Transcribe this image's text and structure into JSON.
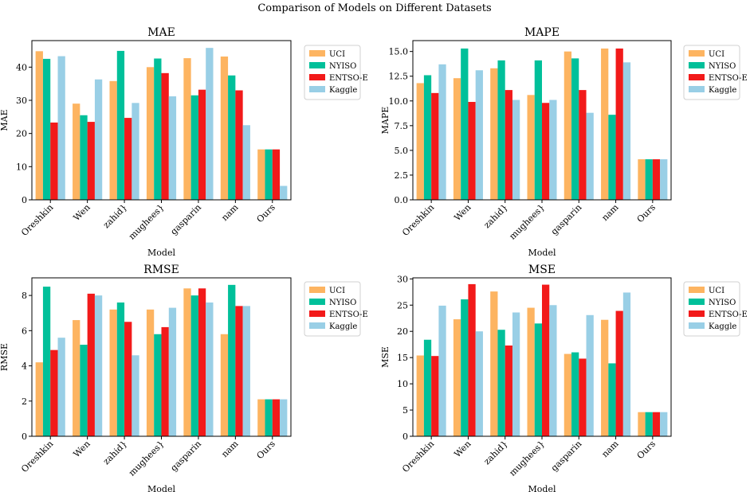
{
  "figure_title": "Comparison of Models on Different Datasets",
  "colors": {
    "UCI": "#FDB461",
    "NYISO": "#00C09A",
    "ENTSO-E": "#F21A1A",
    "Kaggle": "#99CFE6"
  },
  "chart_data": [
    {
      "type": "bar",
      "title": "MAE",
      "xlabel": "Model",
      "ylabel": "MAE",
      "categories": [
        "Oreshkin",
        "Wen",
        "zahid}",
        "mughees}",
        "gasparin",
        "nam",
        "Ours"
      ],
      "ylim": [
        0,
        48
      ],
      "yticks": [
        0,
        10,
        20,
        30,
        40
      ],
      "ytick_labels": [
        "0",
        "10",
        "20",
        "30",
        "40"
      ],
      "series": [
        {
          "name": "UCI",
          "values": [
            44.8,
            29.0,
            35.8,
            40.0,
            42.7,
            43.2,
            15.2
          ]
        },
        {
          "name": "NYISO",
          "values": [
            42.5,
            25.5,
            44.9,
            42.6,
            31.5,
            37.5,
            15.2
          ]
        },
        {
          "name": "ENTSO-E",
          "values": [
            23.3,
            23.5,
            24.7,
            38.2,
            33.2,
            33.0,
            15.2
          ]
        },
        {
          "name": "Kaggle",
          "values": [
            43.3,
            36.3,
            29.2,
            31.2,
            45.8,
            22.5,
            4.2
          ]
        }
      ],
      "legend": [
        "UCI",
        "NYISO",
        "ENTSO-E",
        "Kaggle"
      ]
    },
    {
      "type": "bar",
      "title": "MAPE",
      "xlabel": "Model",
      "ylabel": "MAPE",
      "categories": [
        "Oreshkin",
        "Wen",
        "zahid}",
        "mughees}",
        "gasparin",
        "nam",
        "Ours"
      ],
      "ylim": [
        0,
        16.1
      ],
      "yticks": [
        0,
        2.5,
        5,
        7.5,
        10,
        12.5,
        15
      ],
      "ytick_labels": [
        "0.0",
        "2.5",
        "5.0",
        "7.5",
        "10.0",
        "12.5",
        "15.0"
      ],
      "series": [
        {
          "name": "UCI",
          "values": [
            11.8,
            12.3,
            13.3,
            10.6,
            15.0,
            15.3,
            4.1
          ]
        },
        {
          "name": "NYISO",
          "values": [
            12.6,
            15.3,
            14.1,
            14.1,
            14.3,
            8.6,
            4.1
          ]
        },
        {
          "name": "ENTSO-E",
          "values": [
            10.8,
            9.9,
            11.1,
            9.8,
            11.1,
            15.3,
            4.1
          ]
        },
        {
          "name": "Kaggle",
          "values": [
            13.7,
            13.1,
            10.1,
            10.1,
            8.8,
            13.9,
            4.1
          ]
        }
      ],
      "legend": [
        "UCI",
        "NYISO",
        "ENTSO-E",
        "Kaggle"
      ]
    },
    {
      "type": "bar",
      "title": "RMSE",
      "xlabel": "Model",
      "ylabel": "RMSE",
      "categories": [
        "Oreshkin",
        "Wen",
        "zahid}",
        "mughees}",
        "gasparin",
        "nam",
        "Ours"
      ],
      "ylim": [
        0,
        9.0
      ],
      "yticks": [
        0,
        2,
        4,
        6,
        8
      ],
      "ytick_labels": [
        "0",
        "2",
        "4",
        "6",
        "8"
      ],
      "series": [
        {
          "name": "UCI",
          "values": [
            4.2,
            6.6,
            7.2,
            7.2,
            8.4,
            5.8,
            2.1
          ]
        },
        {
          "name": "NYISO",
          "values": [
            8.5,
            5.2,
            7.6,
            5.8,
            8.0,
            8.6,
            2.1
          ]
        },
        {
          "name": "ENTSO-E",
          "values": [
            4.9,
            8.1,
            6.5,
            6.2,
            8.4,
            7.4,
            2.1
          ]
        },
        {
          "name": "Kaggle",
          "values": [
            5.6,
            8.0,
            4.6,
            7.3,
            7.6,
            7.4,
            2.1
          ]
        }
      ],
      "legend": [
        "UCI",
        "NYISO",
        "ENTSO-E",
        "Kaggle"
      ]
    },
    {
      "type": "bar",
      "title": "MSE",
      "xlabel": "Model",
      "ylabel": "MSE",
      "categories": [
        "Oreshkin",
        "Wen",
        "zahid}",
        "mughees}",
        "gasparin",
        "nam",
        "Ours"
      ],
      "ylim": [
        0,
        30.2
      ],
      "yticks": [
        0,
        5,
        10,
        15,
        20,
        25,
        30
      ],
      "ytick_labels": [
        "0",
        "5",
        "10",
        "15",
        "20",
        "25",
        "30"
      ],
      "series": [
        {
          "name": "UCI",
          "values": [
            15.4,
            22.3,
            27.6,
            24.5,
            15.7,
            22.2,
            4.6
          ]
        },
        {
          "name": "NYISO",
          "values": [
            18.4,
            26.1,
            20.3,
            21.5,
            16.0,
            13.9,
            4.6
          ]
        },
        {
          "name": "ENTSO-E",
          "values": [
            15.3,
            29.0,
            17.3,
            28.9,
            14.8,
            23.9,
            4.6
          ]
        },
        {
          "name": "Kaggle",
          "values": [
            24.9,
            20.0,
            23.6,
            25.0,
            23.1,
            27.4,
            4.6
          ]
        }
      ],
      "legend": [
        "UCI",
        "NYISO",
        "ENTSO-E",
        "Kaggle"
      ]
    }
  ]
}
